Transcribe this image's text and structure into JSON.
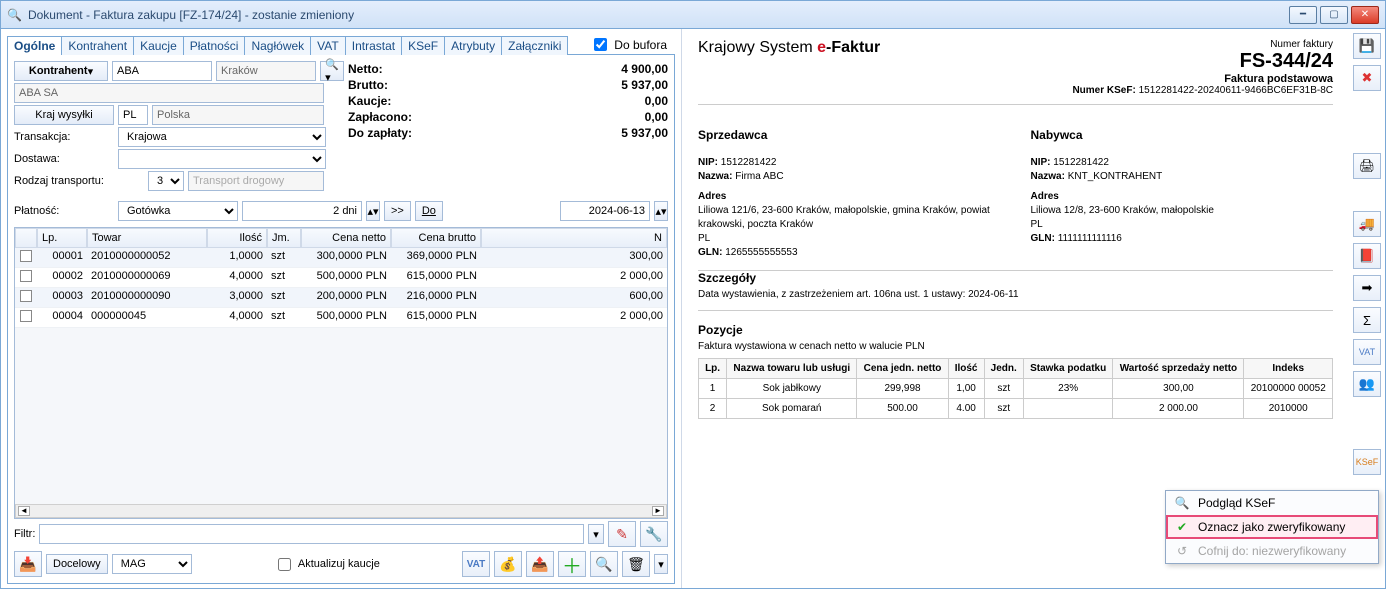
{
  "window": {
    "title": "Dokument - Faktura zakupu [FZ-174/24]  - zostanie zmieniony",
    "buffer_label": "Do bufora"
  },
  "tabs": [
    "Ogólne",
    "Kontrahent",
    "Kaucje",
    "Płatności",
    "Nagłówek",
    "VAT",
    "Intrastat",
    "KSeF",
    "Atrybuty",
    "Załączniki"
  ],
  "contractor": {
    "btn": "Kontrahent",
    "code": "ABA",
    "city": "Kraków",
    "name": "ABA SA",
    "ship_btn": "Kraj wysyłki",
    "ship_code": "PL",
    "ship_name": "Polska",
    "transakcja_label": "Transakcja:",
    "transakcja": "Krajowa",
    "dostawa_label": "Dostawa:",
    "dostawa": "",
    "rodzaj_label": "Rodzaj transportu:",
    "rodzaj_code": "3",
    "rodzaj_name": "Transport drogowy"
  },
  "totals": {
    "netto_l": "Netto:",
    "netto_v": "4 900,00",
    "brutto_l": "Brutto:",
    "brutto_v": "5 937,00",
    "kaucje_l": "Kaucje:",
    "kaucje_v": "0,00",
    "zaplacono_l": "Zapłacono:",
    "zaplacono_v": "0,00",
    "do_zaplaty_l": "Do zapłaty:",
    "do_zaplaty_v": "5 937,00"
  },
  "payment": {
    "label": "Płatność:",
    "method": "Gotówka",
    "days_value": "2 dni",
    "more": ">>",
    "do": "Do",
    "date": "2024-06-13"
  },
  "grid": {
    "headers": [
      "",
      "Lp.",
      "Towar",
      "Ilość",
      "Jm.",
      "Cena netto",
      "Cena brutto",
      "N"
    ],
    "rows": [
      [
        "00001",
        "2010000000052",
        "1,0000",
        "szt",
        "300,0000 PLN",
        "369,0000 PLN",
        "300,00"
      ],
      [
        "00002",
        "2010000000069",
        "4,0000",
        "szt",
        "500,0000 PLN",
        "615,0000 PLN",
        "2 000,00"
      ],
      [
        "00003",
        "2010000000090",
        "3,0000",
        "szt",
        "200,0000 PLN",
        "216,0000 PLN",
        "600,00"
      ],
      [
        "00004",
        "000000045",
        "4,0000",
        "szt",
        "500,0000 PLN",
        "615,0000 PLN",
        "2 000,00"
      ]
    ]
  },
  "filter": {
    "label": "Filtr:"
  },
  "footer": {
    "docelowy": "Docelowy",
    "mag": "MAG",
    "aktualizuj": "Aktualizuj kaucje"
  },
  "preview": {
    "title_a": "Krajowy System ",
    "title_e": "e",
    "title_b": "-Faktur",
    "num_label": "Numer faktury",
    "number": "FS-344/24",
    "subtype": "Faktura podstawowa",
    "ksef_label": "Numer KSeF:",
    "ksef_num": "1512281422-20240611-9466BC6EF31B-8C",
    "sprzedawca": "Sprzedawca",
    "nabywca": "Nabywca",
    "nip_l": "NIP:",
    "nazwa_l": "Nazwa:",
    "adres_l": "Adres",
    "gln_l": "GLN:",
    "seller": {
      "nip": "1512281422",
      "nazwa": "Firma ABC",
      "adres": "Liliowa 121/6, 23-600 Kraków, małopolskie, gmina Kraków, powiat krakowski, poczta Kraków",
      "pl": "PL",
      "gln": "1265555555553"
    },
    "buyer": {
      "nip": "1512281422",
      "nazwa": "KNT_KONTRAHENT",
      "adres": "Liliowa 12/8, 23-600 Kraków, małopolskie",
      "pl": "PL",
      "gln": "1111111111116"
    },
    "szczegoly": "Szczegóły",
    "data_wyst": "Data wystawienia, z zastrzeżeniem art. 106na ust. 1 ustawy: 2024-06-11",
    "pozycje": "Pozycje",
    "pozycje_sub": "Faktura wystawiona w cenach netto w walucie PLN",
    "pos_headers": [
      "Lp.",
      "Nazwa towaru lub usługi",
      "Cena jedn. netto",
      "Ilość",
      "Jedn.",
      "Stawka podatku",
      "Wartość sprzedaży netto",
      "Indeks"
    ],
    "pos_rows": [
      [
        "1",
        "Sok jabłkowy",
        "299,998",
        "1,00",
        "szt",
        "23%",
        "300,00",
        "20100000 00052"
      ],
      [
        "2",
        "Sok pomarań",
        "500.00",
        "4.00",
        "szt",
        "",
        "2 000.00",
        "2010000"
      ]
    ]
  },
  "context_menu": {
    "podglad": "Podgląd KSeF",
    "oznacz": "Oznacz jako zweryfikowany",
    "cofnij": "Cofnij do: niezweryfikowany"
  }
}
